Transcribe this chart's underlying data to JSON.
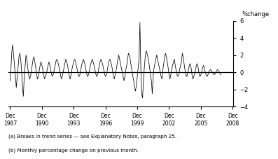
{
  "ylabel": "%change",
  "ylim": [
    -4,
    6
  ],
  "yticks": [
    -4,
    -2,
    0,
    2,
    4,
    6
  ],
  "xlim_start": 1987.75,
  "xlim_end": 2009.0,
  "xtick_years": [
    1987,
    1990,
    1993,
    1996,
    1999,
    2002,
    2005,
    2008
  ],
  "xtick_labels": [
    "Dec\n1987",
    "Dec\n1990",
    "Dec\n1993",
    "Dec\n1996",
    "Dec\n1999",
    "Dec\n2002",
    "Dec\n2005",
    "Dec\n2008"
  ],
  "footnote1": "(a) Breaks in trend series — see Explanatory Notes, paragraph 25.",
  "footnote2": "(b) Monthly percentage change on previous month.",
  "line_color": "#000000",
  "bg_color": "#ffffff",
  "values": [
    -1.0,
    0.5,
    2.5,
    3.2,
    2.0,
    0.8,
    -0.5,
    -1.8,
    -0.5,
    0.5,
    1.8,
    2.2,
    1.5,
    0.2,
    -1.8,
    -2.8,
    -0.5,
    0.8,
    2.0,
    1.5,
    0.5,
    -0.3,
    -0.8,
    -0.5,
    0.0,
    0.8,
    1.5,
    1.8,
    1.2,
    0.5,
    -0.2,
    -0.8,
    -0.5,
    0.2,
    0.8,
    1.2,
    0.8,
    0.3,
    -0.3,
    -0.8,
    -0.5,
    -0.2,
    0.3,
    0.8,
    1.2,
    0.8,
    0.2,
    -0.3,
    -0.5,
    -0.2,
    0.3,
    0.8,
    1.3,
    1.5,
    1.2,
    0.8,
    0.3,
    -0.3,
    -0.8,
    -0.5,
    0.0,
    0.5,
    1.0,
    1.5,
    1.3,
    0.8,
    0.2,
    -0.4,
    -0.8,
    -0.3,
    0.3,
    0.8,
    1.2,
    1.5,
    1.3,
    0.8,
    0.3,
    -0.2,
    -0.5,
    -0.3,
    0.2,
    0.8,
    1.2,
    1.5,
    1.2,
    0.8,
    0.2,
    -0.3,
    -0.5,
    -0.2,
    0.3,
    0.8,
    1.2,
    1.5,
    1.2,
    0.8,
    0.3,
    -0.2,
    -0.5,
    -0.3,
    0.2,
    0.8,
    1.3,
    1.5,
    1.2,
    0.8,
    0.3,
    -0.2,
    -0.5,
    -0.3,
    0.2,
    0.8,
    1.3,
    1.5,
    1.2,
    0.8,
    0.2,
    -0.4,
    -0.8,
    -0.3,
    0.2,
    0.8,
    1.5,
    2.0,
    1.5,
    1.0,
    0.5,
    0.0,
    -0.5,
    -1.0,
    -0.5,
    0.2,
    0.8,
    1.5,
    2.2,
    2.0,
    1.5,
    0.8,
    0.2,
    -0.5,
    -1.0,
    -1.8,
    -2.2,
    -1.5,
    -0.5,
    0.5,
    1.5,
    5.8,
    0.5,
    -2.5,
    -3.0,
    -1.0,
    0.5,
    1.8,
    2.5,
    2.2,
    1.8,
    1.2,
    0.5,
    -0.3,
    -1.0,
    -2.5,
    -0.5,
    0.5,
    1.0,
    1.5,
    2.0,
    1.5,
    1.0,
    0.5,
    0.0,
    -0.5,
    -0.8,
    0.3,
    1.0,
    1.8,
    2.2,
    1.8,
    1.2,
    0.5,
    -0.3,
    -0.8,
    -0.3,
    0.3,
    0.8,
    1.2,
    1.5,
    0.8,
    0.2,
    -0.3,
    -0.5,
    -0.2,
    0.3,
    0.8,
    1.2,
    2.2,
    1.8,
    1.0,
    0.3,
    -0.3,
    -0.5,
    -0.2,
    0.3,
    0.8,
    1.0,
    0.5,
    -0.3,
    -0.8,
    -0.5,
    -0.2,
    0.3,
    0.8,
    1.0,
    0.5,
    -0.2,
    -0.5,
    -0.3,
    0.0,
    0.5,
    0.8,
    0.5,
    0.0,
    -0.3,
    -0.5,
    -0.3,
    0.0,
    0.2,
    0.3,
    0.2,
    0.0,
    -0.2,
    -0.3,
    -0.2,
    0.0,
    0.2,
    0.3,
    0.2,
    0.0,
    -0.2,
    -0.3
  ]
}
